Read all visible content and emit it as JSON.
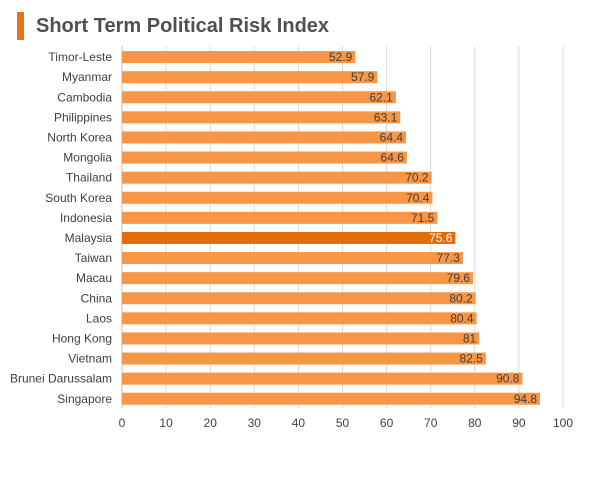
{
  "chart_data": {
    "type": "bar",
    "orientation": "horizontal",
    "title": "Short Term Political Risk Index",
    "xlabel": "",
    "ylabel": "",
    "xlim": [
      0,
      100
    ],
    "x_ticks": [
      "0",
      "10",
      "20",
      "30",
      "40",
      "50",
      "60",
      "70",
      "80",
      "90",
      "100"
    ],
    "grid": "vertical",
    "legend": "none",
    "categories": [
      "Timor-Leste",
      "Myanmar",
      "Cambodia",
      "Philippines",
      "North Korea",
      "Mongolia",
      "Thailand",
      "South Korea",
      "Indonesia",
      "Malaysia",
      "Taiwan",
      "Macau",
      "China",
      "Laos",
      "Hong Kong",
      "Vietnam",
      "Brunei Darussalam",
      "Singapore"
    ],
    "values": [
      52.9,
      57.9,
      62.1,
      63.1,
      64.4,
      64.6,
      70.2,
      70.4,
      71.5,
      75.6,
      77.3,
      79.6,
      80.2,
      80.4,
      81,
      82.5,
      90.8,
      94.8
    ],
    "value_labels": [
      "52.9",
      "57.9",
      "62.1",
      "63.1",
      "64.4",
      "64.6",
      "70.2",
      "70.4",
      "71.5",
      "75.6",
      "77.3",
      "79.6",
      "80.2",
      "80.4",
      "81",
      "82.5",
      "90.8",
      "94.8"
    ],
    "highlight_category": "Malaysia",
    "colors": {
      "bar": "#f79646",
      "highlight": "#e26b0a",
      "accent": "#e8731a",
      "grid": "#d9d9d9",
      "label": "#404040",
      "value_label": "#404040",
      "highlight_value_label": "#ffffff"
    }
  }
}
